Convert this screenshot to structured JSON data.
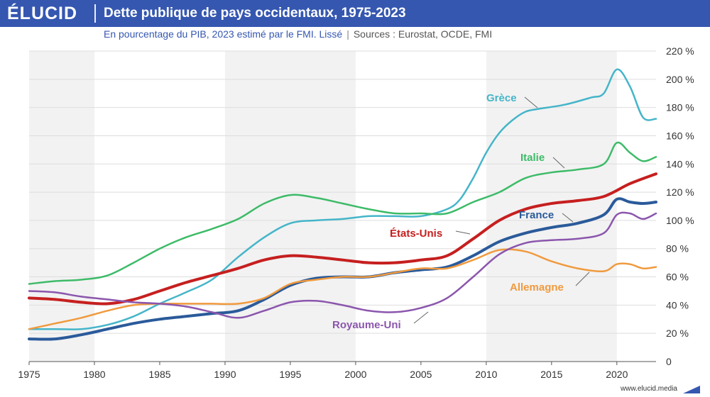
{
  "header": {
    "logo": "ÉLUCID",
    "title": "Dette publique de pays occidentaux, 1975-2023",
    "subtitle": "En pourcentage du PIB, 2023 estimé par le FMI. Lissé",
    "separator": "|",
    "sources": "Sources : Eurostat, OCDE, FMI"
  },
  "footer": {
    "url": "www.elucid.media"
  },
  "colors": {
    "brand": "#3557b0",
    "band": "#f2f2f2",
    "grid": "#dddddd"
  },
  "chart_data": {
    "type": "line",
    "xlim": [
      1975,
      2023
    ],
    "ylim": [
      0,
      220
    ],
    "xticks": [
      1975,
      1980,
      1985,
      1990,
      1995,
      2000,
      2005,
      2010,
      2015,
      2020
    ],
    "yticks": [
      0,
      20,
      40,
      60,
      80,
      100,
      120,
      140,
      160,
      180,
      200,
      220
    ],
    "ytick_labels": [
      "0",
      "20 %",
      "40 %",
      "60 %",
      "80 %",
      "100 %",
      "120 %",
      "140 %",
      "160 %",
      "180 %",
      "200 %",
      "220 %"
    ],
    "shaded_bands": [
      [
        1975,
        1980
      ],
      [
        1990,
        2000
      ],
      [
        2010,
        2020
      ]
    ],
    "grid": "horizontal",
    "series": [
      {
        "name": "Grèce",
        "color": "#45b5c9",
        "width": 2.5,
        "label_anchor": [
          2012,
          190
        ],
        "points": [
          [
            1975,
            23
          ],
          [
            1977,
            23
          ],
          [
            1979,
            23
          ],
          [
            1981,
            26
          ],
          [
            1983,
            32
          ],
          [
            1985,
            41
          ],
          [
            1987,
            49
          ],
          [
            1989,
            58
          ],
          [
            1991,
            74
          ],
          [
            1993,
            88
          ],
          [
            1995,
            98
          ],
          [
            1997,
            100
          ],
          [
            1999,
            101
          ],
          [
            2001,
            103
          ],
          [
            2003,
            103
          ],
          [
            2005,
            103
          ],
          [
            2007,
            108
          ],
          [
            2008,
            115
          ],
          [
            2009,
            130
          ],
          [
            2010,
            148
          ],
          [
            2011,
            162
          ],
          [
            2012,
            171
          ],
          [
            2013,
            177
          ],
          [
            2014,
            179
          ],
          [
            2016,
            182
          ],
          [
            2018,
            187
          ],
          [
            2019,
            190
          ],
          [
            2020,
            207
          ],
          [
            2021,
            195
          ],
          [
            2022,
            173
          ],
          [
            2023,
            172
          ]
        ]
      },
      {
        "name": "Italie",
        "color": "#3dbb68",
        "width": 2.5,
        "label_anchor": [
          2014,
          135
        ],
        "points": [
          [
            1975,
            55
          ],
          [
            1977,
            57
          ],
          [
            1979,
            58
          ],
          [
            1981,
            61
          ],
          [
            1983,
            70
          ],
          [
            1985,
            80
          ],
          [
            1987,
            88
          ],
          [
            1989,
            94
          ],
          [
            1991,
            101
          ],
          [
            1993,
            112
          ],
          [
            1995,
            118
          ],
          [
            1997,
            116
          ],
          [
            1999,
            112
          ],
          [
            2001,
            108
          ],
          [
            2003,
            105
          ],
          [
            2005,
            105
          ],
          [
            2007,
            105
          ],
          [
            2009,
            113
          ],
          [
            2011,
            120
          ],
          [
            2013,
            130
          ],
          [
            2015,
            134
          ],
          [
            2017,
            136
          ],
          [
            2019,
            140
          ],
          [
            2020,
            155
          ],
          [
            2021,
            148
          ],
          [
            2022,
            142
          ],
          [
            2023,
            145
          ]
        ]
      },
      {
        "name": "États-Unis",
        "color": "#c61f1f",
        "width": 4,
        "label_anchor": [
          2005,
          90
        ],
        "points": [
          [
            1975,
            45
          ],
          [
            1977,
            44
          ],
          [
            1979,
            42
          ],
          [
            1981,
            41
          ],
          [
            1983,
            44
          ],
          [
            1985,
            50
          ],
          [
            1987,
            56
          ],
          [
            1989,
            61
          ],
          [
            1991,
            66
          ],
          [
            1993,
            72
          ],
          [
            1995,
            75
          ],
          [
            1997,
            74
          ],
          [
            1999,
            72
          ],
          [
            2001,
            70
          ],
          [
            2003,
            70
          ],
          [
            2005,
            72
          ],
          [
            2007,
            75
          ],
          [
            2009,
            87
          ],
          [
            2011,
            100
          ],
          [
            2013,
            108
          ],
          [
            2015,
            112
          ],
          [
            2017,
            114
          ],
          [
            2019,
            117
          ],
          [
            2021,
            126
          ],
          [
            2023,
            133
          ]
        ]
      },
      {
        "name": "France",
        "color": "#2a5a9a",
        "width": 4,
        "label_anchor": [
          2016,
          95
        ],
        "points": [
          [
            1975,
            16
          ],
          [
            1977,
            16
          ],
          [
            1979,
            19
          ],
          [
            1981,
            23
          ],
          [
            1983,
            27
          ],
          [
            1985,
            30
          ],
          [
            1987,
            32
          ],
          [
            1989,
            34
          ],
          [
            1991,
            36
          ],
          [
            1993,
            44
          ],
          [
            1995,
            54
          ],
          [
            1997,
            59
          ],
          [
            1999,
            60
          ],
          [
            2001,
            60
          ],
          [
            2003,
            63
          ],
          [
            2005,
            65
          ],
          [
            2007,
            67
          ],
          [
            2009,
            75
          ],
          [
            2011,
            85
          ],
          [
            2013,
            91
          ],
          [
            2015,
            95
          ],
          [
            2017,
            98
          ],
          [
            2019,
            104
          ],
          [
            2020,
            115
          ],
          [
            2021,
            113
          ],
          [
            2022,
            112
          ],
          [
            2023,
            113
          ]
        ]
      },
      {
        "name": "Allemagne",
        "color": "#f09a3e",
        "width": 2.5,
        "label_anchor": [
          2018,
          63
        ],
        "points": [
          [
            1975,
            23
          ],
          [
            1977,
            27
          ],
          [
            1979,
            31
          ],
          [
            1981,
            36
          ],
          [
            1983,
            40
          ],
          [
            1985,
            41
          ],
          [
            1987,
            41
          ],
          [
            1989,
            41
          ],
          [
            1991,
            41
          ],
          [
            1993,
            45
          ],
          [
            1995,
            55
          ],
          [
            1997,
            58
          ],
          [
            1999,
            60
          ],
          [
            2001,
            60
          ],
          [
            2003,
            63
          ],
          [
            2005,
            66
          ],
          [
            2007,
            66
          ],
          [
            2009,
            72
          ],
          [
            2011,
            79
          ],
          [
            2013,
            78
          ],
          [
            2015,
            71
          ],
          [
            2017,
            66
          ],
          [
            2019,
            64
          ],
          [
            2020,
            69
          ],
          [
            2021,
            69
          ],
          [
            2022,
            66
          ],
          [
            2023,
            67
          ]
        ]
      },
      {
        "name": "Royaume-Uni",
        "color": "#8b56ad",
        "width": 2.5,
        "label_anchor": [
          2006,
          48
        ],
        "points": [
          [
            1975,
            50
          ],
          [
            1977,
            49
          ],
          [
            1979,
            46
          ],
          [
            1981,
            44
          ],
          [
            1983,
            42
          ],
          [
            1985,
            41
          ],
          [
            1987,
            39
          ],
          [
            1989,
            35
          ],
          [
            1991,
            31
          ],
          [
            1993,
            36
          ],
          [
            1995,
            42
          ],
          [
            1997,
            43
          ],
          [
            1999,
            40
          ],
          [
            2001,
            36
          ],
          [
            2003,
            35
          ],
          [
            2005,
            38
          ],
          [
            2007,
            45
          ],
          [
            2009,
            60
          ],
          [
            2011,
            76
          ],
          [
            2013,
            84
          ],
          [
            2015,
            86
          ],
          [
            2017,
            87
          ],
          [
            2019,
            91
          ],
          [
            2020,
            104
          ],
          [
            2021,
            105
          ],
          [
            2022,
            101
          ],
          [
            2023,
            105
          ]
        ]
      }
    ]
  }
}
